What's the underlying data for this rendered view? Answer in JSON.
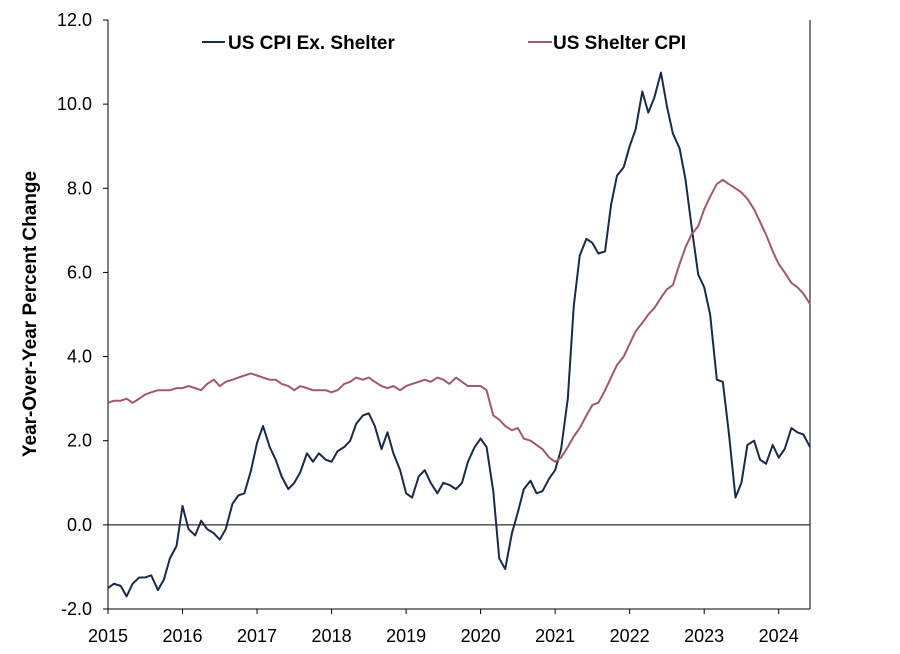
{
  "chart_data": {
    "type": "line",
    "title": "",
    "xlabel": "",
    "ylabel": "Year-Over-Year Percent Change",
    "xlim": [
      2015.0,
      2024.42
    ],
    "ylim": [
      -2.0,
      12.0
    ],
    "y_ticks": [
      "-2.0",
      "0.0",
      "2.0",
      "4.0",
      "6.0",
      "8.0",
      "10.0",
      "12.0"
    ],
    "x_ticks": [
      "2015",
      "2016",
      "2017",
      "2018",
      "2019",
      "2020",
      "2021",
      "2022",
      "2023",
      "2024"
    ],
    "grid": false,
    "legend_position": "top",
    "series": [
      {
        "name": "US CPI Ex. Shelter",
        "color": "#1b2a47",
        "x": [
          2015.0,
          2015.08,
          2015.17,
          2015.25,
          2015.33,
          2015.42,
          2015.5,
          2015.58,
          2015.67,
          2015.75,
          2015.83,
          2015.92,
          2016.0,
          2016.08,
          2016.17,
          2016.25,
          2016.33,
          2016.42,
          2016.5,
          2016.58,
          2016.67,
          2016.75,
          2016.83,
          2016.92,
          2017.0,
          2017.08,
          2017.17,
          2017.25,
          2017.33,
          2017.42,
          2017.5,
          2017.58,
          2017.67,
          2017.75,
          2017.83,
          2017.92,
          2018.0,
          2018.08,
          2018.17,
          2018.25,
          2018.33,
          2018.42,
          2018.5,
          2018.58,
          2018.67,
          2018.75,
          2018.83,
          2018.92,
          2019.0,
          2019.08,
          2019.17,
          2019.25,
          2019.33,
          2019.42,
          2019.5,
          2019.58,
          2019.67,
          2019.75,
          2019.83,
          2019.92,
          2020.0,
          2020.08,
          2020.17,
          2020.25,
          2020.33,
          2020.42,
          2020.5,
          2020.58,
          2020.67,
          2020.75,
          2020.83,
          2020.92,
          2021.0,
          2021.08,
          2021.17,
          2021.25,
          2021.33,
          2021.42,
          2021.5,
          2021.58,
          2021.67,
          2021.75,
          2021.83,
          2021.92,
          2022.0,
          2022.08,
          2022.17,
          2022.25,
          2022.33,
          2022.42,
          2022.5,
          2022.58,
          2022.67,
          2022.75,
          2022.83,
          2022.92,
          2023.0,
          2023.08,
          2023.17,
          2023.25,
          2023.33,
          2023.42,
          2023.5,
          2023.58,
          2023.67,
          2023.75,
          2023.83,
          2023.92,
          2024.0,
          2024.08,
          2024.17,
          2024.25,
          2024.33,
          2024.42
        ],
        "values": [
          -1.5,
          -1.4,
          -1.45,
          -1.7,
          -1.4,
          -1.25,
          -1.25,
          -1.2,
          -1.55,
          -1.3,
          -0.8,
          -0.5,
          0.45,
          -0.1,
          -0.25,
          0.1,
          -0.1,
          -0.2,
          -0.35,
          -0.1,
          0.5,
          0.7,
          0.75,
          1.3,
          1.95,
          2.35,
          1.85,
          1.55,
          1.15,
          0.85,
          1.0,
          1.25,
          1.7,
          1.5,
          1.7,
          1.55,
          1.5,
          1.75,
          1.85,
          2.0,
          2.4,
          2.6,
          2.65,
          2.35,
          1.8,
          2.2,
          1.7,
          1.3,
          0.75,
          0.65,
          1.15,
          1.3,
          1.0,
          0.75,
          1.0,
          0.95,
          0.85,
          1.0,
          1.5,
          1.85,
          2.05,
          1.85,
          0.8,
          -0.8,
          -1.05,
          -0.2,
          0.3,
          0.85,
          1.05,
          0.75,
          0.8,
          1.1,
          1.3,
          1.8,
          3.0,
          5.2,
          6.4,
          6.8,
          6.7,
          6.45,
          6.5,
          7.6,
          8.3,
          8.5,
          9.0,
          9.4,
          10.3,
          9.8,
          10.15,
          10.75,
          9.95,
          9.3,
          8.95,
          8.2,
          7.1,
          5.95,
          5.65,
          5.0,
          3.45,
          3.4,
          2.2,
          0.65,
          1.0,
          1.9,
          2.0,
          1.55,
          1.45,
          1.9,
          1.6,
          1.8,
          2.3,
          2.2,
          2.15,
          1.85
        ]
      },
      {
        "name": "US Shelter CPI",
        "color": "#a05a6a",
        "x": [
          2015.0,
          2015.08,
          2015.17,
          2015.25,
          2015.33,
          2015.42,
          2015.5,
          2015.58,
          2015.67,
          2015.75,
          2015.83,
          2015.92,
          2016.0,
          2016.08,
          2016.17,
          2016.25,
          2016.33,
          2016.42,
          2016.5,
          2016.58,
          2016.67,
          2016.75,
          2016.83,
          2016.92,
          2017.0,
          2017.08,
          2017.17,
          2017.25,
          2017.33,
          2017.42,
          2017.5,
          2017.58,
          2017.67,
          2017.75,
          2017.83,
          2017.92,
          2018.0,
          2018.08,
          2018.17,
          2018.25,
          2018.33,
          2018.42,
          2018.5,
          2018.58,
          2018.67,
          2018.75,
          2018.83,
          2018.92,
          2019.0,
          2019.08,
          2019.17,
          2019.25,
          2019.33,
          2019.42,
          2019.5,
          2019.58,
          2019.67,
          2019.75,
          2019.83,
          2019.92,
          2020.0,
          2020.08,
          2020.17,
          2020.25,
          2020.33,
          2020.42,
          2020.5,
          2020.58,
          2020.67,
          2020.75,
          2020.83,
          2020.92,
          2021.0,
          2021.08,
          2021.17,
          2021.25,
          2021.33,
          2021.42,
          2021.5,
          2021.58,
          2021.67,
          2021.75,
          2021.83,
          2021.92,
          2022.0,
          2022.08,
          2022.17,
          2022.25,
          2022.33,
          2022.42,
          2022.5,
          2022.58,
          2022.67,
          2022.75,
          2022.83,
          2022.92,
          2023.0,
          2023.08,
          2023.17,
          2023.25,
          2023.33,
          2023.42,
          2023.5,
          2023.58,
          2023.67,
          2023.75,
          2023.83,
          2023.92,
          2024.0,
          2024.08,
          2024.17,
          2024.25,
          2024.33,
          2024.42
        ],
        "values": [
          2.9,
          2.95,
          2.95,
          3.0,
          2.9,
          3.0,
          3.1,
          3.15,
          3.2,
          3.2,
          3.2,
          3.25,
          3.25,
          3.3,
          3.25,
          3.2,
          3.35,
          3.45,
          3.3,
          3.4,
          3.45,
          3.5,
          3.55,
          3.6,
          3.55,
          3.5,
          3.45,
          3.45,
          3.35,
          3.3,
          3.2,
          3.3,
          3.25,
          3.2,
          3.2,
          3.2,
          3.15,
          3.2,
          3.35,
          3.4,
          3.5,
          3.45,
          3.5,
          3.4,
          3.3,
          3.25,
          3.3,
          3.2,
          3.3,
          3.35,
          3.4,
          3.45,
          3.4,
          3.5,
          3.45,
          3.35,
          3.5,
          3.4,
          3.3,
          3.3,
          3.3,
          3.2,
          2.6,
          2.5,
          2.35,
          2.25,
          2.3,
          2.05,
          2.0,
          1.9,
          1.8,
          1.6,
          1.5,
          1.6,
          1.85,
          2.1,
          2.3,
          2.6,
          2.85,
          2.9,
          3.2,
          3.5,
          3.8,
          4.0,
          4.3,
          4.6,
          4.8,
          5.0,
          5.15,
          5.4,
          5.6,
          5.7,
          6.2,
          6.6,
          6.9,
          7.1,
          7.5,
          7.8,
          8.1,
          8.2,
          8.1,
          8.0,
          7.9,
          7.75,
          7.5,
          7.2,
          6.9,
          6.5,
          6.2,
          6.0,
          5.75,
          5.65,
          5.5,
          5.25
        ]
      }
    ]
  }
}
